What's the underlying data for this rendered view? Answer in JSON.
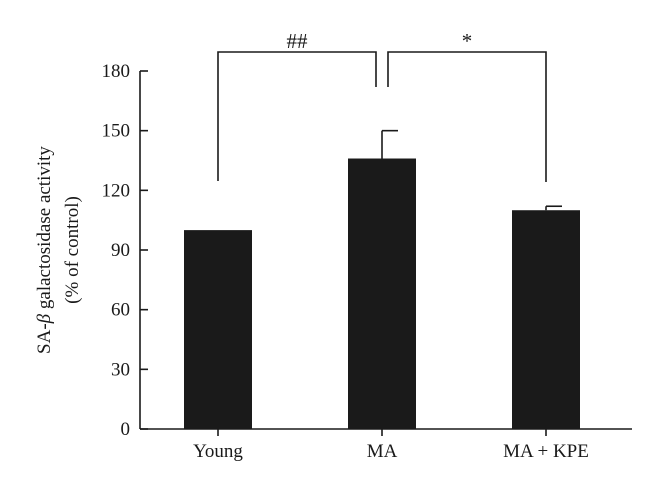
{
  "chart_data": {
    "type": "bar",
    "title": "",
    "ylabel_line1_prefix": "SA-",
    "ylabel_line1_symbol": "β",
    "ylabel_line1_suffix": " galactosidase activity",
    "ylabel_line2": "(% of control)",
    "xlabel": "",
    "categories": [
      "Young",
      "MA",
      "MA + KPE"
    ],
    "values": [
      100,
      136,
      110
    ],
    "errors": [
      0,
      14,
      2
    ],
    "ylim": [
      0,
      180
    ],
    "yticks": [
      0,
      30,
      60,
      90,
      120,
      150,
      180
    ],
    "grid": false,
    "bar_color": "#1a1a1a",
    "significance": [
      {
        "label": "##",
        "from": 0,
        "to": 1
      },
      {
        "label": "*",
        "from": 1,
        "to": 2
      }
    ]
  }
}
